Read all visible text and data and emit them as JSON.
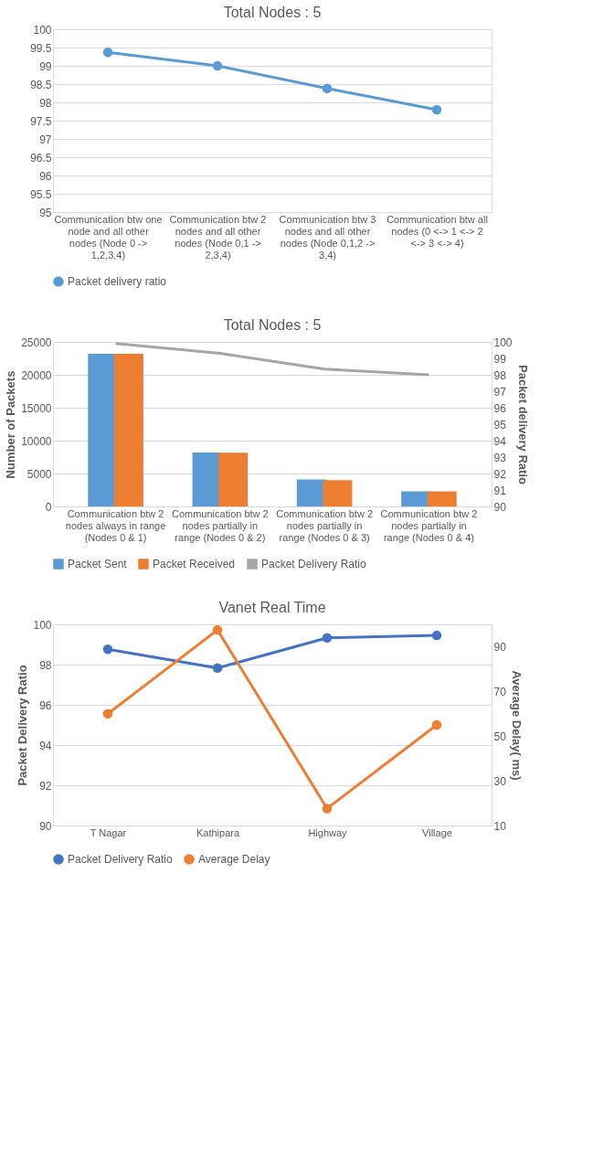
{
  "chart_data": [
    {
      "type": "line",
      "title": "Total Nodes : 5",
      "categories": [
        "Communication btw one node and all other nodes (Node 0 -> 1,2,3,4)",
        "Communication btw 2 nodes and all other nodes (Node 0,1 -> 2,3,4)",
        "Communication btw 3 nodes and all other nodes (Node 0,1,2 -> 3,4)",
        "Communication btw all nodes (0 <-> 1 <-> 2 <-> 3 <-> 4)"
      ],
      "series": [
        {
          "name": "Packet delivery ratio",
          "color": "#5b9bd5",
          "values": [
            99.37,
            99.0,
            98.38,
            97.8
          ]
        }
      ],
      "ylim": [
        95,
        100
      ],
      "yticks": [
        95,
        95.5,
        96,
        96.5,
        97,
        97.5,
        98,
        98.5,
        99,
        99.5,
        100
      ],
      "grid": "y",
      "legend": "bottom",
      "marker": "circle"
    },
    {
      "type": "bar",
      "title": "Total Nodes : 5",
      "ylabel": "Number of Packets",
      "y2label": "Packet delivery Ratio",
      "categories": [
        "Communication btw 2 nodes always in range (Nodes 0 & 1)",
        "Communication btw 2 nodes partially in range (Nodes 0 & 2)",
        "Communication btw 2 nodes partially in range (Nodes 0 & 3)",
        "Communication btw 2 nodes partially in range (Nodes 0 & 4)"
      ],
      "series": [
        {
          "name": "Packet Sent",
          "color": "#5b9bd5",
          "values": [
            23200,
            8200,
            4100,
            2300
          ]
        },
        {
          "name": "Packet Received",
          "color": "#ed7d31",
          "values": [
            23200,
            8150,
            4000,
            2300
          ]
        },
        {
          "name": "Packet Delivery Ratio",
          "color": "#a5a5a5",
          "type": "line",
          "axis": "y2",
          "values": [
            99.9,
            99.3,
            98.35,
            98.0
          ]
        }
      ],
      "ylim": [
        0,
        25000
      ],
      "yticks": [
        0,
        5000,
        10000,
        15000,
        20000,
        25000
      ],
      "y2lim": [
        90,
        100
      ],
      "y2ticks": [
        90,
        91,
        92,
        93,
        94,
        95,
        96,
        97,
        98,
        99,
        100
      ],
      "grid": "y",
      "legend": "bottom"
    },
    {
      "type": "line",
      "title": "Vanet Real Time",
      "ylabel": "Packet Delivery Ratio",
      "y2label": "Average Delay( ms)",
      "categories": [
        "T Nagar",
        "Kathipara",
        "Highway",
        "Village"
      ],
      "series": [
        {
          "name": "Packet Delivery Ratio",
          "color": "#4472c4",
          "values": [
            98.76,
            97.83,
            99.33,
            99.45
          ]
        },
        {
          "name": "Average Delay",
          "color": "#ed7d31",
          "axis": "y2",
          "values": [
            60,
            97.5,
            17.6,
            55
          ]
        }
      ],
      "ylim": [
        90,
        100
      ],
      "yticks": [
        90,
        92,
        94,
        96,
        98,
        100
      ],
      "y2lim": [
        10,
        100
      ],
      "y2ticks": [
        10,
        30,
        50,
        70,
        90
      ],
      "grid": "y",
      "legend": "bottom",
      "marker": "circle"
    }
  ]
}
